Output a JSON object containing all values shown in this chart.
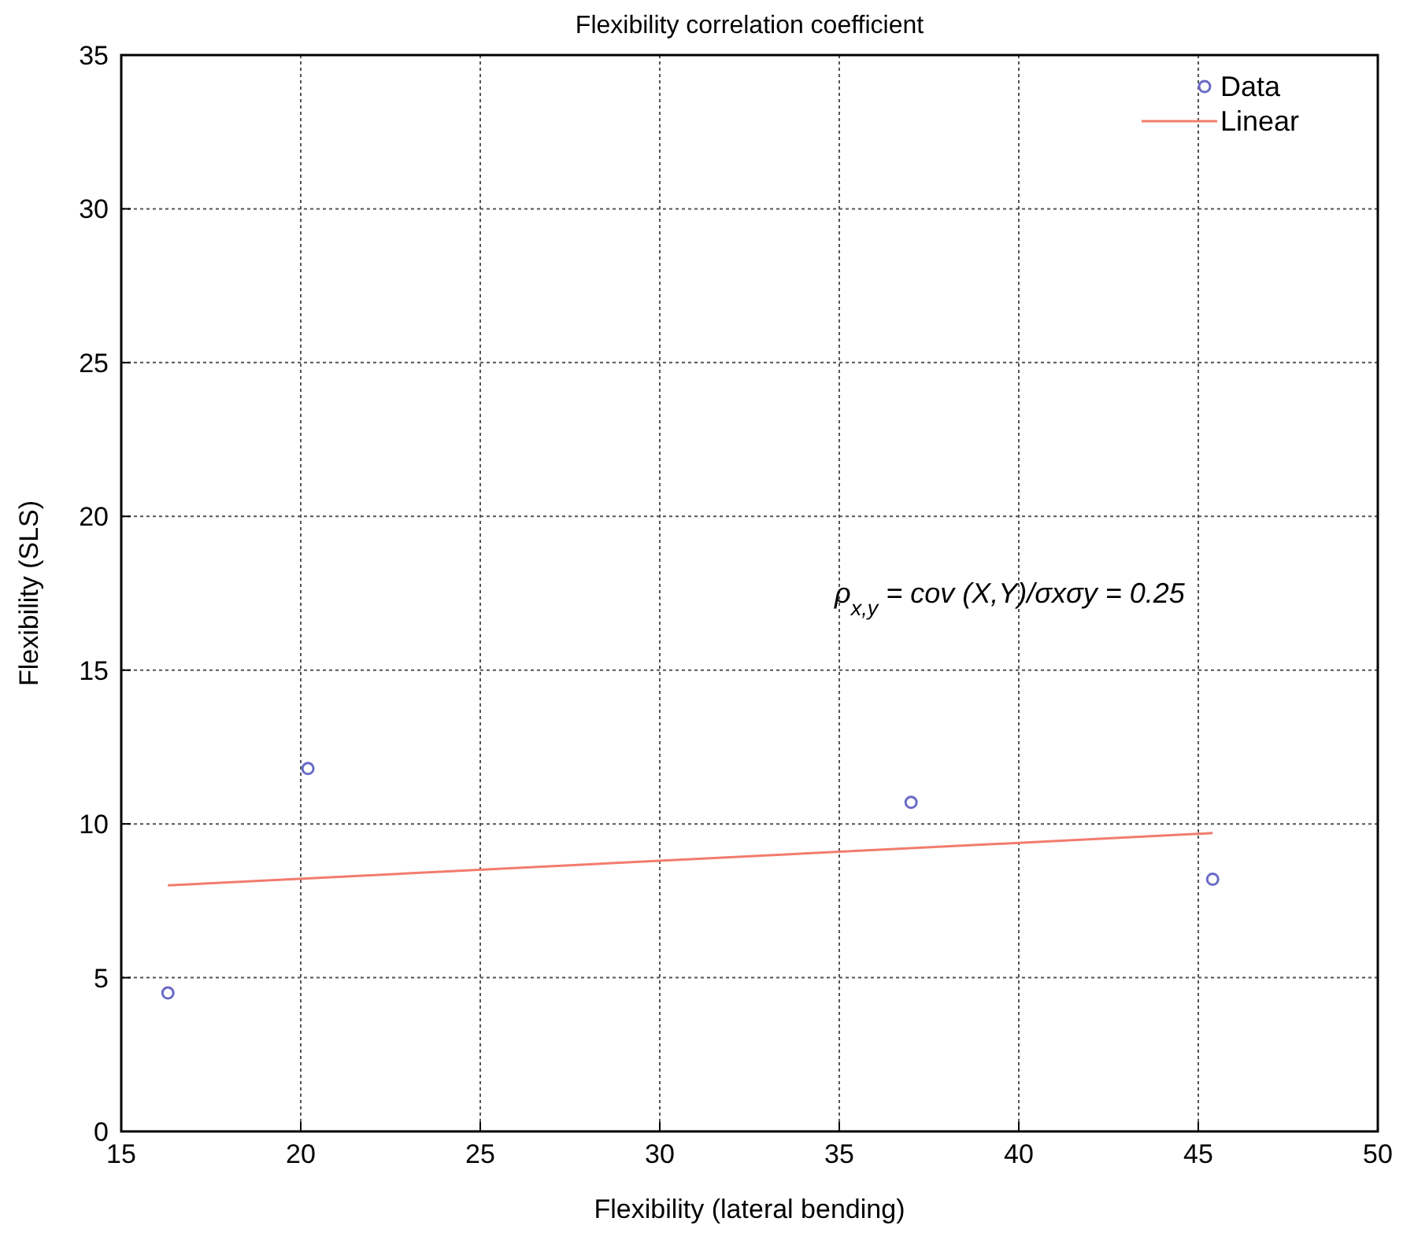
{
  "chart_data": {
    "type": "scatter",
    "title": "Flexibility correlation coefficient",
    "xlabel": "Flexibility (lateral bending)",
    "ylabel": "Flexibility (SLS)",
    "xlim": [
      15,
      50
    ],
    "xticks": [
      15,
      20,
      25,
      30,
      35,
      40,
      45,
      50
    ],
    "ylim": [
      0,
      35
    ],
    "yticks": [
      0,
      5,
      10,
      15,
      20,
      25,
      30,
      35
    ],
    "grid": true,
    "legend": "top right",
    "series": [
      {
        "name": "Data",
        "color": "#6a6ac8",
        "marker": "circle",
        "x": [
          16.3,
          20.2,
          37.0,
          45.4
        ],
        "values": [
          4.5,
          11.8,
          10.7,
          8.2
        ]
      },
      {
        "name": "Linear",
        "type": "line",
        "color": "#f27c6e",
        "marker": "none",
        "x": [
          16.3,
          45.4
        ],
        "values": [
          8.0,
          9.7
        ]
      }
    ],
    "annotations": [
      "ρ$_{x,y}$ = cov (X,Y)/σxσy = 0.25"
    ]
  }
}
